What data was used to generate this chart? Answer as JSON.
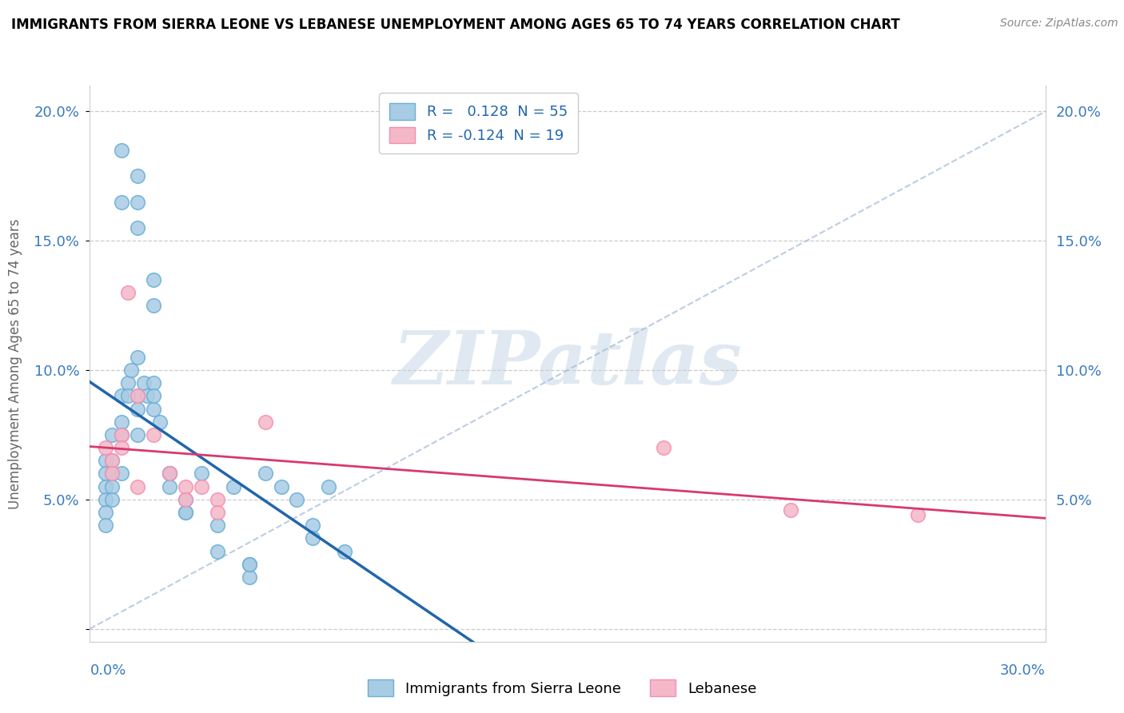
{
  "title": "IMMIGRANTS FROM SIERRA LEONE VS LEBANESE UNEMPLOYMENT AMONG AGES 65 TO 74 YEARS CORRELATION CHART",
  "source": "Source: ZipAtlas.com",
  "ylabel": "Unemployment Among Ages 65 to 74 years",
  "legend_blue_r": " 0.128",
  "legend_blue_n": "55",
  "legend_pink_r": "-0.124",
  "legend_pink_n": "19",
  "blue_color": "#a8cce4",
  "pink_color": "#f4b8c8",
  "blue_edge_color": "#6baed6",
  "pink_edge_color": "#f48fb1",
  "blue_line_color": "#2166ac",
  "pink_line_color": "#d63a6e",
  "diag_color": "#a0b8d8",
  "watermark_color": "#d0dde8",
  "xlim": [
    0.0,
    0.3
  ],
  "ylim": [
    -0.005,
    0.21
  ],
  "ytick_values": [
    0.0,
    0.05,
    0.1,
    0.15,
    0.2
  ],
  "xtick_values": [
    0.0,
    0.05,
    0.1,
    0.15,
    0.2,
    0.25,
    0.3
  ],
  "blue_points_x": [
    0.01,
    0.01,
    0.005,
    0.005,
    0.005,
    0.005,
    0.005,
    0.005,
    0.007,
    0.007,
    0.007,
    0.007,
    0.007,
    0.01,
    0.01,
    0.01,
    0.01,
    0.015,
    0.015,
    0.015,
    0.015,
    0.015,
    0.015,
    0.017,
    0.018,
    0.02,
    0.02,
    0.02,
    0.02,
    0.022,
    0.025,
    0.025,
    0.03,
    0.03,
    0.035,
    0.04,
    0.04,
    0.045,
    0.05,
    0.05,
    0.055,
    0.06,
    0.065,
    0.07,
    0.07,
    0.075,
    0.08,
    0.012,
    0.012,
    0.013,
    0.015,
    0.02,
    0.025,
    0.03,
    0.05
  ],
  "blue_points_y": [
    0.185,
    0.165,
    0.065,
    0.06,
    0.055,
    0.05,
    0.045,
    0.04,
    0.075,
    0.065,
    0.06,
    0.055,
    0.05,
    0.09,
    0.08,
    0.075,
    0.06,
    0.175,
    0.165,
    0.105,
    0.09,
    0.085,
    0.075,
    0.095,
    0.09,
    0.135,
    0.125,
    0.095,
    0.085,
    0.08,
    0.06,
    0.055,
    0.05,
    0.045,
    0.06,
    0.04,
    0.03,
    0.055,
    0.025,
    0.02,
    0.06,
    0.055,
    0.05,
    0.04,
    0.035,
    0.055,
    0.03,
    0.095,
    0.09,
    0.1,
    0.155,
    0.09,
    0.06,
    0.045,
    0.025
  ],
  "pink_points_x": [
    0.005,
    0.007,
    0.007,
    0.01,
    0.01,
    0.012,
    0.015,
    0.015,
    0.02,
    0.025,
    0.03,
    0.03,
    0.035,
    0.04,
    0.04,
    0.055,
    0.18,
    0.22,
    0.26
  ],
  "pink_points_y": [
    0.07,
    0.065,
    0.06,
    0.075,
    0.07,
    0.13,
    0.09,
    0.055,
    0.075,
    0.06,
    0.055,
    0.05,
    0.055,
    0.05,
    0.045,
    0.08,
    0.07,
    0.046,
    0.044
  ]
}
